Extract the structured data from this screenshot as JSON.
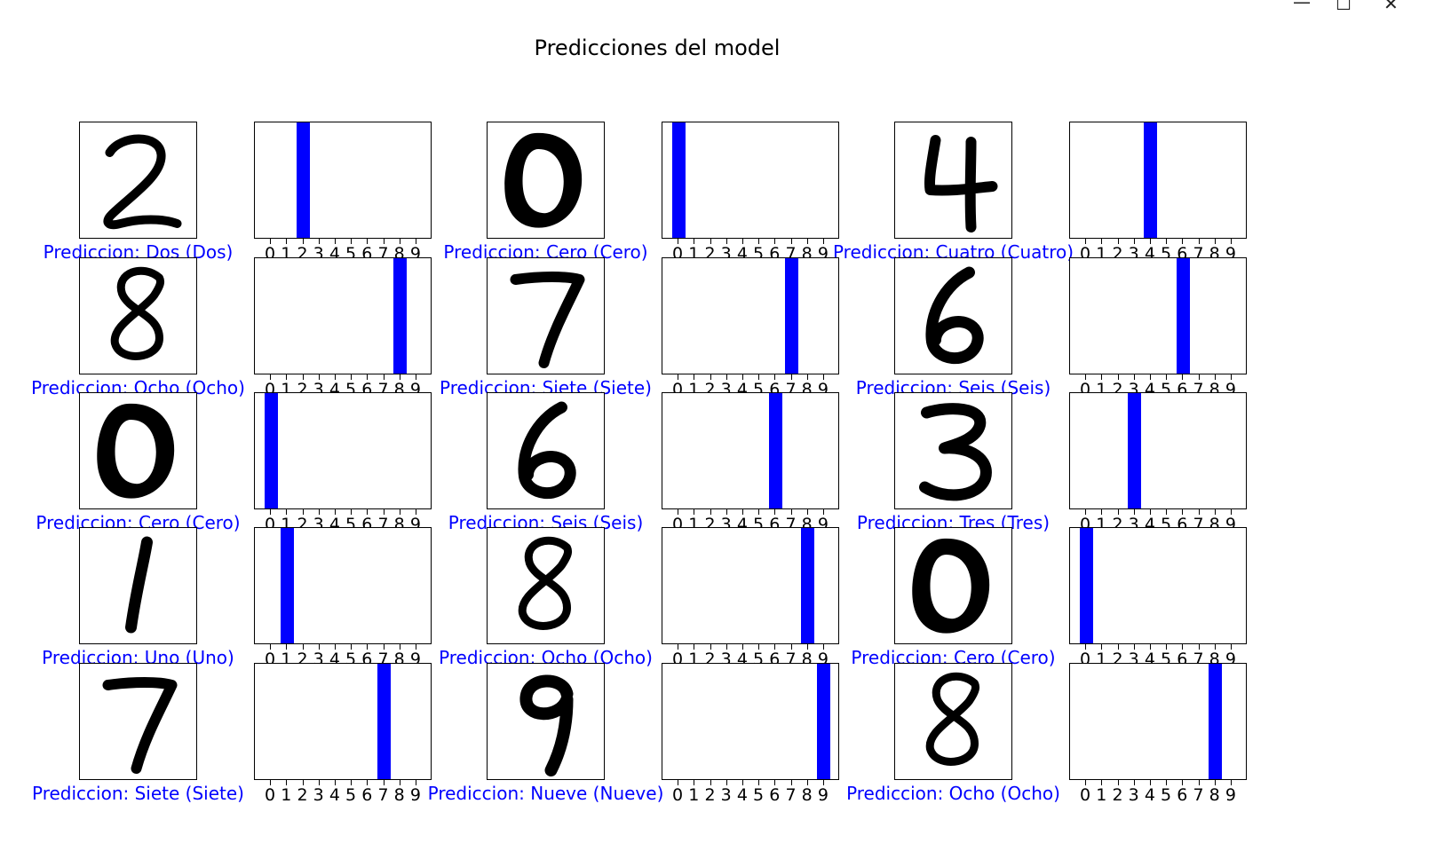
{
  "window": {
    "minimize_icon": "minimize-icon",
    "maximize_icon": "maximize-icon",
    "close_icon": "close-icon"
  },
  "figure": {
    "title": "Predicciones del model"
  },
  "colors": {
    "correct": "#0000ff",
    "bar": "#0000ff",
    "axes": "#000000"
  },
  "chart_data": {
    "type": "bar",
    "categories": [
      "0",
      "1",
      "2",
      "3",
      "4",
      "5",
      "6",
      "7",
      "8",
      "9"
    ],
    "xticks": [
      "0",
      "1",
      "2",
      "3",
      "4",
      "5",
      "6",
      "7",
      "8",
      "9"
    ],
    "panels": [
      {
        "digit": 2,
        "label": "Prediccion: Dos (Dos)",
        "values": [
          0,
          0,
          1,
          0,
          0,
          0,
          0,
          0,
          0,
          0
        ]
      },
      {
        "digit": 0,
        "label": "Prediccion: Cero (Cero)",
        "values": [
          1,
          0,
          0,
          0,
          0,
          0,
          0,
          0,
          0,
          0
        ]
      },
      {
        "digit": 4,
        "label": "Prediccion: Cuatro (Cuatro)",
        "values": [
          0,
          0,
          0,
          0,
          1,
          0,
          0,
          0,
          0,
          0
        ]
      },
      {
        "digit": 8,
        "label": "Prediccion: Ocho (Ocho)",
        "values": [
          0,
          0,
          0,
          0,
          0,
          0,
          0,
          0,
          1,
          0
        ]
      },
      {
        "digit": 7,
        "label": "Prediccion: Siete (Siete)",
        "values": [
          0,
          0,
          0,
          0,
          0,
          0,
          0,
          1,
          0,
          0
        ]
      },
      {
        "digit": 6,
        "label": "Prediccion: Seis (Seis)",
        "values": [
          0,
          0,
          0,
          0,
          0,
          0,
          1,
          0,
          0,
          0
        ]
      },
      {
        "digit": 0,
        "label": "Prediccion: Cero (Cero)",
        "values": [
          1,
          0,
          0,
          0,
          0,
          0,
          0,
          0,
          0,
          0
        ]
      },
      {
        "digit": 6,
        "label": "Prediccion: Seis (Seis)",
        "values": [
          0,
          0,
          0,
          0,
          0,
          0,
          1,
          0,
          0,
          0
        ]
      },
      {
        "digit": 3,
        "label": "Prediccion: Tres (Tres)",
        "values": [
          0,
          0,
          0,
          1,
          0,
          0,
          0,
          0,
          0,
          0
        ]
      },
      {
        "digit": 1,
        "label": "Prediccion: Uno (Uno)",
        "values": [
          0,
          1,
          0,
          0,
          0,
          0,
          0,
          0,
          0,
          0
        ]
      },
      {
        "digit": 8,
        "label": "Prediccion: Ocho (Ocho)",
        "values": [
          0,
          0,
          0,
          0,
          0,
          0,
          0,
          0,
          1,
          0
        ]
      },
      {
        "digit": 0,
        "label": "Prediccion: Cero (Cero)",
        "values": [
          1,
          0,
          0,
          0,
          0,
          0,
          0,
          0,
          0,
          0
        ]
      },
      {
        "digit": 7,
        "label": "Prediccion: Siete (Siete)",
        "values": [
          0,
          0,
          0,
          0,
          0,
          0,
          0,
          1,
          0,
          0
        ]
      },
      {
        "digit": 9,
        "label": "Prediccion: Nueve (Nueve)",
        "values": [
          0,
          0,
          0,
          0,
          0,
          0,
          0,
          0,
          0,
          1
        ]
      },
      {
        "digit": 8,
        "label": "Prediccion: Ocho (Ocho)",
        "values": [
          0,
          0,
          0,
          0,
          0,
          0,
          0,
          0,
          1,
          0
        ]
      }
    ],
    "ylim": [
      0,
      1
    ],
    "grid": false
  }
}
